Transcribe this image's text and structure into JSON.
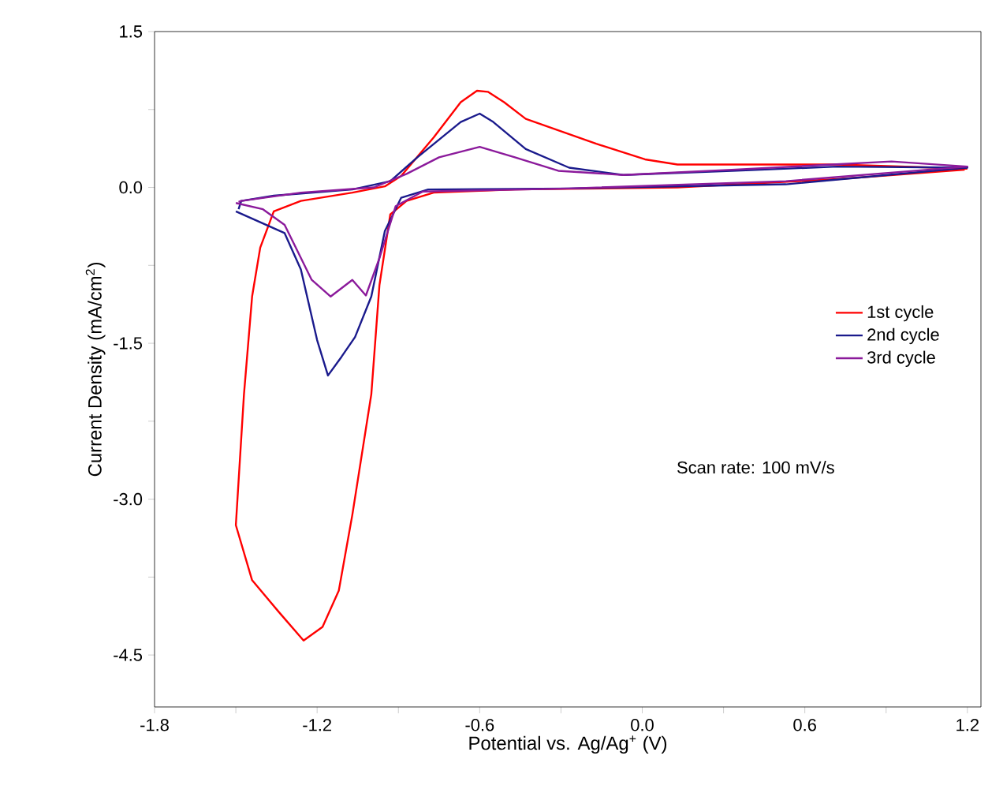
{
  "chart_data": {
    "type": "line",
    "xlabel": "Potential vs. Ag/Ag$^{+}$ (V)",
    "ylabel": "Current Density (mA/cm$^{2}$)",
    "xlim": [
      -1.8,
      1.25
    ],
    "ylim": [
      -5.0,
      1.5
    ],
    "xticks": [
      -1.8,
      {
        "value": -1.5,
        "label": null
      },
      -1.2,
      {
        "value": -0.9,
        "label": null
      },
      -0.6,
      {
        "value": -0.3,
        "label": null
      },
      {
        "value": 0,
        "label": "0.0"
      },
      {
        "value": 0.3,
        "label": null
      },
      0.6,
      {
        "value": 0.9,
        "label": null
      },
      1.2
    ],
    "yticks": [
      {
        "value": -4.5,
        "label": "-4.5"
      },
      {
        "value": -3.75,
        "label": null
      },
      {
        "value": -3.0,
        "label": "-3.0"
      },
      {
        "value": -2.25,
        "label": null
      },
      -1.5,
      {
        "value": -0.75,
        "label": null
      },
      {
        "value": 0,
        "label": "0.0"
      },
      {
        "value": 0.75,
        "label": null
      },
      1.5
    ],
    "legend": "right",
    "annotations": [
      "Scan rate: 100 mV/s"
    ],
    "series": [
      {
        "name": "1st cycle",
        "color": "#ff0000",
        "x": [
          1.2,
          0.72,
          0.13,
          0.01,
          -0.17,
          -0.43,
          -0.51,
          -0.57,
          -0.61,
          -0.67,
          -0.77,
          -0.89,
          -0.95,
          -1.07,
          -1.26,
          -1.36,
          -1.41,
          -1.44,
          -1.47,
          -1.5,
          -1.44,
          -1.34,
          -1.25,
          -1.18,
          -1.12,
          -1.07,
          -1.0,
          -0.97,
          -0.93,
          -0.87,
          -0.77,
          -0.47,
          0.13,
          0.72,
          1.19
        ],
        "values": [
          0.18,
          0.22,
          0.22,
          0.27,
          0.42,
          0.66,
          0.82,
          0.92,
          0.93,
          0.82,
          0.48,
          0.11,
          0.01,
          -0.05,
          -0.13,
          -0.23,
          -0.58,
          -1.05,
          -1.99,
          -3.25,
          -3.78,
          -4.09,
          -4.36,
          -4.23,
          -3.88,
          -3.15,
          -1.99,
          -0.94,
          -0.26,
          -0.13,
          -0.05,
          -0.02,
          0.0,
          0.08,
          0.17
        ]
      },
      {
        "name": "2nd cycle",
        "color": "#1a1a8c",
        "x": [
          -1.5,
          -1.32,
          -1.26,
          -1.2,
          -1.16,
          -1.11,
          -1.06,
          -1.0,
          -0.95,
          -0.89,
          -0.79,
          -0.27,
          0.53,
          1.2,
          0.72,
          0.33,
          -0.07,
          -0.27,
          -0.43,
          -0.55,
          -0.6,
          -0.67,
          -0.83,
          -0.93,
          -1.07,
          -1.36,
          -1.48,
          -1.49
        ],
        "values": [
          -0.23,
          -0.44,
          -0.79,
          -1.47,
          -1.81,
          -1.63,
          -1.44,
          -1.05,
          -0.42,
          -0.1,
          -0.02,
          -0.01,
          0.03,
          0.19,
          0.2,
          0.16,
          0.12,
          0.19,
          0.37,
          0.63,
          0.71,
          0.63,
          0.29,
          0.06,
          -0.02,
          -0.08,
          -0.13,
          -0.21
        ]
      },
      {
        "name": "3rd cycle",
        "color": "#8b1a9b",
        "x": [
          -1.5,
          -1.4,
          -1.32,
          -1.22,
          -1.15,
          -1.07,
          -1.02,
          -0.97,
          -0.91,
          -0.81,
          -0.27,
          0.53,
          1.2,
          0.92,
          0.33,
          -0.07,
          -0.31,
          -0.47,
          -0.6,
          -0.75,
          -0.87,
          -0.99,
          -1.26,
          -1.48,
          -1.49
        ],
        "values": [
          -0.15,
          -0.21,
          -0.36,
          -0.89,
          -1.05,
          -0.89,
          -1.04,
          -0.68,
          -0.18,
          -0.04,
          -0.01,
          0.06,
          0.2,
          0.25,
          0.17,
          0.12,
          0.16,
          0.29,
          0.39,
          0.29,
          0.13,
          0.0,
          -0.05,
          -0.13,
          -0.14
        ]
      }
    ]
  }
}
